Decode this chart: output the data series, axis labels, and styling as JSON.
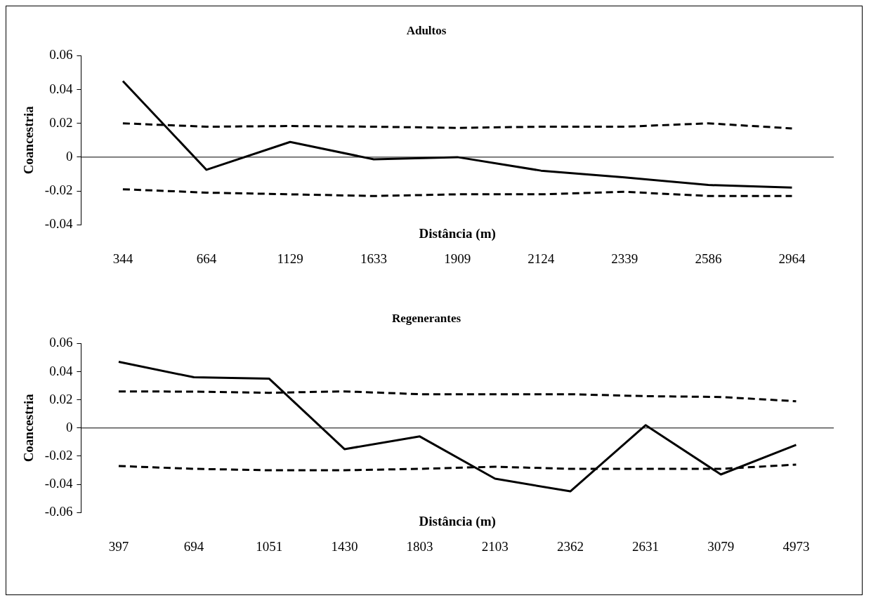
{
  "chart_data": [
    {
      "type": "line",
      "title": "Adultos",
      "xlabel": "Distância (m)",
      "ylabel": "Coancestria",
      "categories": [
        "344",
        "664",
        "1129",
        "1633",
        "1909",
        "2124",
        "2339",
        "2586",
        "2964"
      ],
      "series": [
        {
          "color": "#000000",
          "line_style": "solid",
          "values": [
            0.045,
            -0.0075,
            0.009,
            -0.0013,
            0,
            -0.008,
            -0.012,
            -0.0165,
            -0.018
          ]
        },
        {
          "color": "#000000",
          "line_style": "dashed",
          "values": [
            0.02,
            0.018,
            0.0184,
            0.018,
            0.0173,
            0.018,
            0.018,
            0.02,
            0.017
          ]
        },
        {
          "color": "#000000",
          "line_style": "dashed",
          "values": [
            -0.019,
            -0.021,
            -0.022,
            -0.023,
            -0.022,
            -0.022,
            -0.0205,
            -0.023,
            -0.023
          ]
        }
      ],
      "ylim": [
        -0.04,
        0.06
      ],
      "yticks": [
        {
          "value": -0.04,
          "label": "-0.04"
        },
        {
          "value": -0.02,
          "label": "-0.02"
        },
        0,
        {
          "value": 0.02,
          "label": "0.02"
        },
        {
          "value": 0.04,
          "label": "0.04"
        },
        {
          "value": 0.06,
          "label": "0.06"
        }
      ],
      "ref_lines": [
        {
          "axis": "y",
          "value": 0,
          "color": "#000000"
        }
      ],
      "grid": false,
      "legend": false,
      "marker": "none"
    },
    {
      "type": "line",
      "title": "Regenerantes",
      "xlabel": "Distância (m)",
      "ylabel": "Coancestria",
      "categories": [
        "397",
        "694",
        "1051",
        "1430",
        "1803",
        "2103",
        "2362",
        "2631",
        "3079",
        "4973"
      ],
      "series": [
        {
          "color": "#000000",
          "line_style": "solid",
          "values": [
            0.047,
            0.036,
            0.035,
            -0.015,
            -0.006,
            -0.036,
            -0.045,
            0.002,
            -0.033,
            -0.012
          ]
        },
        {
          "color": "#000000",
          "line_style": "dashed",
          "values": [
            0.026,
            0.0258,
            0.025,
            0.026,
            0.024,
            0.024,
            0.024,
            0.0226,
            0.022,
            0.019
          ]
        },
        {
          "color": "#000000",
          "line_style": "dashed",
          "values": [
            -0.027,
            -0.029,
            -0.03,
            -0.03,
            -0.029,
            -0.0275,
            -0.029,
            -0.029,
            -0.029,
            -0.026
          ]
        }
      ],
      "ylim": [
        -0.06,
        0.06
      ],
      "yticks": [
        {
          "value": -0.06,
          "label": "-0.06"
        },
        {
          "value": -0.04,
          "label": "-0.04"
        },
        {
          "value": -0.02,
          "label": "-0.02"
        },
        0,
        {
          "value": 0.02,
          "label": "0.02"
        },
        {
          "value": 0.04,
          "label": "0.04"
        },
        {
          "value": 0.06,
          "label": "0.06"
        }
      ],
      "ref_lines": [
        {
          "axis": "y",
          "value": 0,
          "color": "#000000"
        }
      ],
      "grid": false,
      "legend": false,
      "marker": "none"
    }
  ]
}
